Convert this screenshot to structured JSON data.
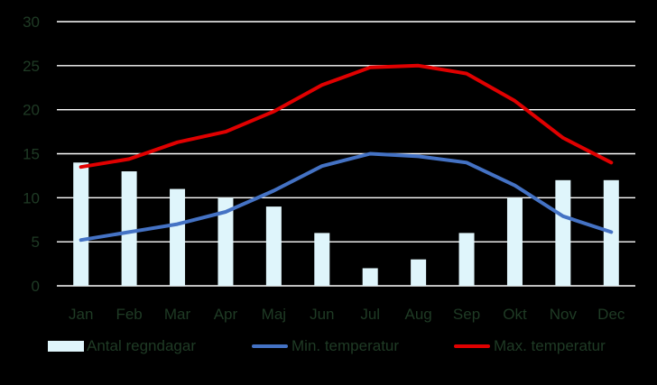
{
  "chart_data": {
    "type": "bar+line",
    "categories": [
      "Jan",
      "Feb",
      "Mar",
      "Apr",
      "Maj",
      "Jun",
      "Jul",
      "Aug",
      "Sep",
      "Okt",
      "Nov",
      "Dec"
    ],
    "series": [
      {
        "name": "Antal regndagar",
        "kind": "bar",
        "color": "#dff5fb",
        "values": [
          14,
          13,
          11,
          10,
          9,
          6,
          2,
          3,
          6,
          10,
          12,
          12
        ]
      },
      {
        "name": "Min. temperatur",
        "kind": "line",
        "color": "#4472c4",
        "values": [
          5.2,
          6.1,
          7.0,
          8.4,
          10.8,
          13.6,
          15.0,
          14.7,
          14.0,
          11.4,
          7.9,
          6.1
        ]
      },
      {
        "name": "Max. temperatur",
        "kind": "line",
        "color": "#e00000",
        "values": [
          13.5,
          14.4,
          16.3,
          17.5,
          19.8,
          22.8,
          24.8,
          25.0,
          24.1,
          21.0,
          16.8,
          14.0
        ]
      }
    ],
    "ylim": [
      0,
      30
    ],
    "yticks": [
      "0",
      "5",
      "10",
      "15",
      "20",
      "25",
      "30"
    ],
    "grid": true,
    "legend_position": "bottom"
  }
}
